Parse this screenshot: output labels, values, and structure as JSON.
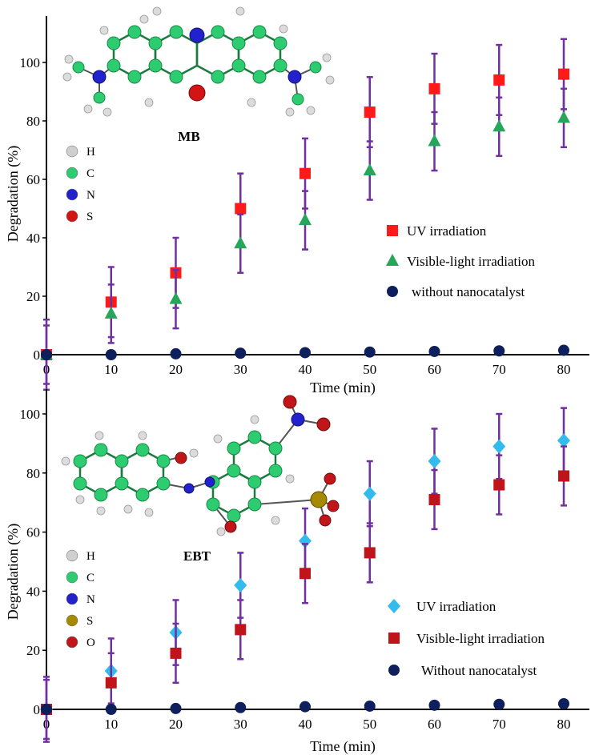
{
  "colors": {
    "axis": "#000000",
    "error_bar": "#7030a0",
    "uv_red": "#ff1a1a",
    "vis_green": "#26a65b",
    "none_navy": "#0d1f5c",
    "uv_cyan": "#33bbee",
    "vis_darkred": "#c0131a",
    "atom_H": "#cfcfcf",
    "atom_C": "#2ecc71",
    "atom_N": "#2222cc",
    "atom_S_mb": "#d31414",
    "atom_S_ebt": "#a58a00",
    "atom_O": "#c0161a"
  },
  "chart_data": [
    {
      "id": "mb",
      "type": "scatter",
      "xlabel": "Time (min)",
      "ylabel": "Degradation (%)",
      "xlim": [
        0,
        80
      ],
      "ylim": [
        0,
        110
      ],
      "xticks": [
        0,
        10,
        20,
        30,
        40,
        50,
        60,
        70,
        80
      ],
      "yticks": [
        0,
        20,
        40,
        60,
        80,
        100
      ],
      "molecule": {
        "name": "MB",
        "elements": [
          {
            "symbol": "H",
            "color": "#cfcfcf"
          },
          {
            "symbol": "C",
            "color": "#2ecc71"
          },
          {
            "symbol": "N",
            "color": "#2222cc"
          },
          {
            "symbol": "S",
            "color": "#d31414"
          }
        ]
      },
      "series": [
        {
          "name": "UV irradiation",
          "marker": "square",
          "color": "#ff1a1a",
          "x": [
            0,
            10,
            20,
            30,
            40,
            50,
            60,
            70,
            80
          ],
          "y": [
            0,
            18,
            28,
            50,
            62,
            83,
            91,
            94,
            96
          ],
          "err": [
            12,
            12,
            12,
            12,
            12,
            12,
            12,
            12,
            12
          ]
        },
        {
          "name": "Visible-light irradiation",
          "marker": "triangle",
          "color": "#26a65b",
          "x": [
            0,
            10,
            20,
            30,
            40,
            50,
            60,
            70,
            80
          ],
          "y": [
            0,
            14,
            19,
            38,
            46,
            63,
            73,
            78,
            81
          ],
          "err": [
            10,
            10,
            10,
            10,
            10,
            10,
            10,
            10,
            10
          ]
        },
        {
          "name": "without nanocatalyst",
          "marker": "circle",
          "color": "#0d1f5c",
          "x": [
            0,
            10,
            20,
            30,
            40,
            50,
            60,
            70,
            80
          ],
          "y": [
            0,
            0,
            0.3,
            0.5,
            0.7,
            0.9,
            1.1,
            1.3,
            1.5
          ],
          "err": [
            0,
            0,
            0,
            0,
            0,
            0,
            0,
            0,
            0
          ]
        }
      ]
    },
    {
      "id": "ebt",
      "type": "scatter",
      "xlabel": "Time (min)",
      "ylabel": "Degradation (%)",
      "xlim": [
        0,
        80
      ],
      "ylim": [
        0,
        107
      ],
      "xticks": [
        0,
        10,
        20,
        30,
        40,
        50,
        60,
        70,
        80
      ],
      "yticks": [
        0,
        20,
        40,
        60,
        80,
        100
      ],
      "molecule": {
        "name": "EBT",
        "elements": [
          {
            "symbol": "H",
            "color": "#cfcfcf"
          },
          {
            "symbol": "C",
            "color": "#2ecc71"
          },
          {
            "symbol": "N",
            "color": "#2222cc"
          },
          {
            "symbol": "S",
            "color": "#a58a00"
          },
          {
            "symbol": "O",
            "color": "#c0161a"
          }
        ]
      },
      "series": [
        {
          "name": "UV irradiation",
          "marker": "diamond",
          "color": "#33bbee",
          "x": [
            0,
            10,
            20,
            30,
            40,
            50,
            60,
            70,
            80
          ],
          "y": [
            0,
            13,
            26,
            42,
            57,
            73,
            84,
            89,
            91
          ],
          "err": [
            11,
            11,
            11,
            11,
            11,
            11,
            11,
            11,
            11
          ]
        },
        {
          "name": "Visible-light irradiation",
          "marker": "square",
          "color": "#c0131a",
          "x": [
            0,
            10,
            20,
            30,
            40,
            50,
            60,
            70,
            80
          ],
          "y": [
            0,
            9,
            19,
            27,
            46,
            53,
            71,
            76,
            79
          ],
          "err": [
            10,
            10,
            10,
            10,
            10,
            10,
            10,
            10,
            10
          ]
        },
        {
          "name": "Without nanocatalyst",
          "marker": "circle",
          "color": "#0d1f5c",
          "x": [
            0,
            10,
            20,
            30,
            40,
            50,
            60,
            70,
            80
          ],
          "y": [
            0,
            0,
            0.3,
            0.6,
            0.9,
            1.1,
            1.4,
            1.7,
            1.9
          ],
          "err": [
            0,
            0,
            0,
            0,
            0,
            0,
            0,
            0,
            0
          ]
        }
      ]
    }
  ]
}
